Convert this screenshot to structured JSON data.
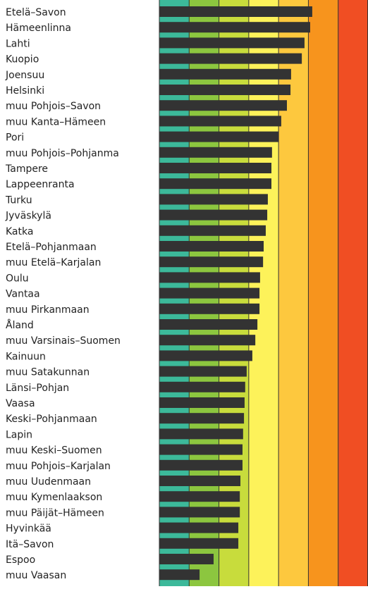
{
  "chart_data": {
    "type": "bar",
    "orientation": "horizontal",
    "categories": [
      "Etelä–Savon",
      "Hämeenlinna",
      "Lahti",
      "Kuopio",
      "Joensuu",
      "Helsinki",
      "muu Pohjois–Savon",
      "muu Kanta–Hämeen",
      "Pori",
      "muu Pohjois–Pohjanma",
      "Tampere",
      "Lappeenranta",
      "Turku",
      "Jyväskylä",
      "Katka",
      "Etelä–Pohjanmaan",
      "muu Etelä–Karjalan",
      "Oulu",
      "Vantaa",
      "muu Pirkanmaan",
      "Åland",
      "muu Varsinais–Suomen",
      "Kainuun",
      "muu Satakunnan",
      "Länsi–Pohjan",
      "Vaasa",
      "Keski–Pohjanmaan",
      "Lapin",
      "muu Keski–Suomen",
      "muu Pohjois–Karjalan",
      "muu Uudenmaan",
      "muu Kymenlaakson",
      "muu Päijät–Hämeen",
      "Hyvinkää",
      "Itä–Savon",
      "Espoo",
      "muu Vaasan"
    ],
    "values": [
      5.13,
      5.06,
      4.87,
      4.78,
      4.42,
      4.4,
      4.28,
      4.09,
      4.0,
      3.78,
      3.76,
      3.76,
      3.64,
      3.62,
      3.57,
      3.5,
      3.48,
      3.38,
      3.36,
      3.36,
      3.29,
      3.22,
      3.12,
      2.93,
      2.88,
      2.86,
      2.84,
      2.81,
      2.79,
      2.79,
      2.72,
      2.7,
      2.7,
      2.65,
      2.65,
      1.82,
      1.35
    ],
    "color": "#333333",
    "xlim": [
      0,
      7
    ],
    "bands": [
      "#3cb99a",
      "#8cc63f",
      "#c8dc3c",
      "#fdf25a",
      "#fdc83e",
      "#f7941d",
      "#f04e23"
    ]
  }
}
